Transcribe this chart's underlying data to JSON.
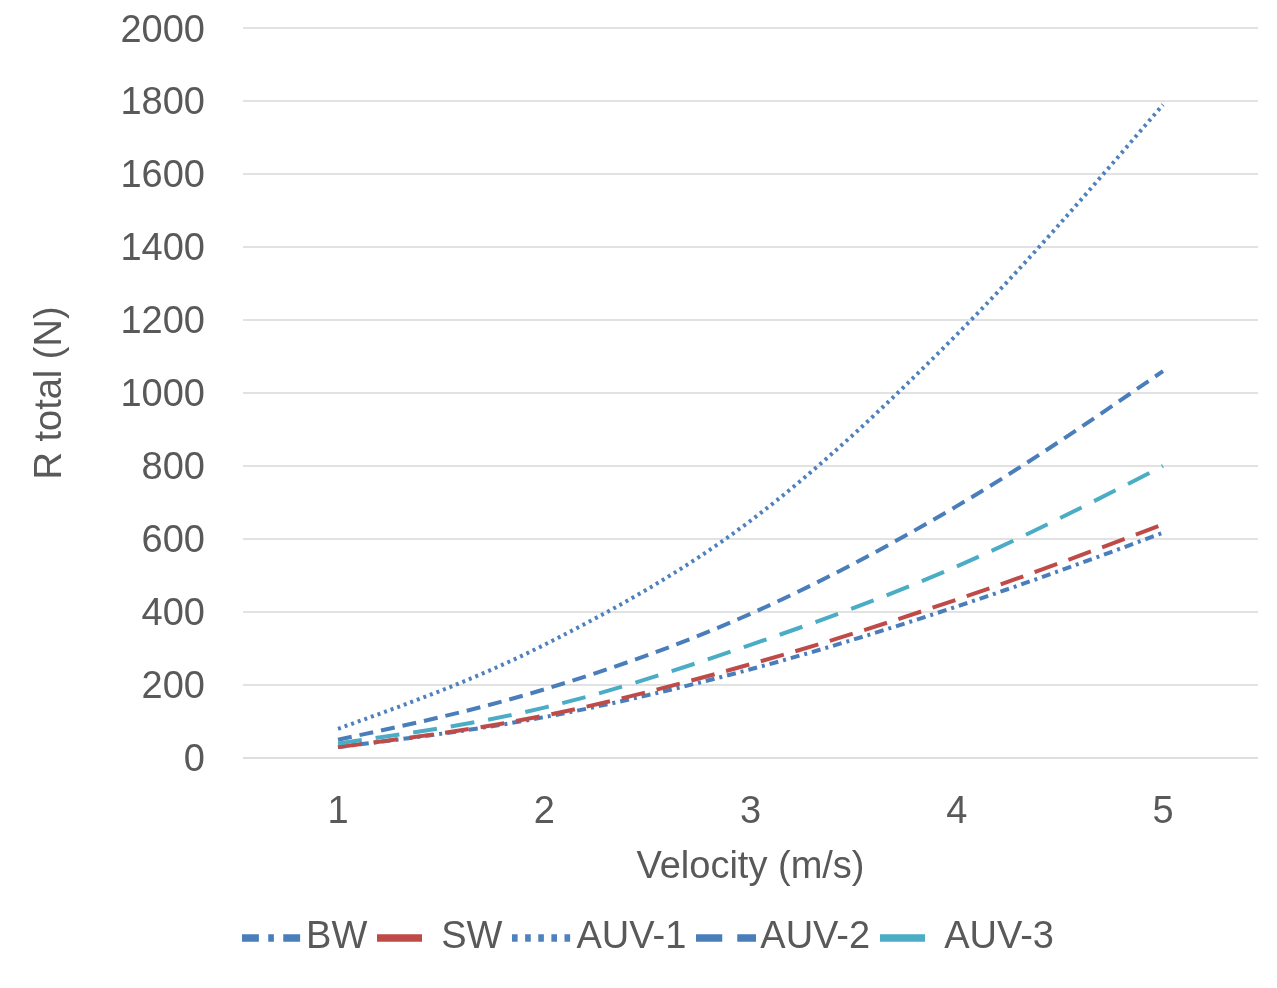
{
  "chart_data": {
    "type": "line",
    "xlabel": "Velocity (m/s)",
    "ylabel": "R total (N)",
    "categories": [
      "1",
      "2",
      "3",
      "4",
      "5"
    ],
    "series": [
      {
        "name": "BW",
        "color": "#4a7ebb",
        "line_style": "dashed",
        "values": [
          30,
          112,
          243,
          415,
          617
        ]
      },
      {
        "name": "SW",
        "color": "#be4b48",
        "line_style": "dashed",
        "values": [
          30,
          116,
          257,
          434,
          640
        ]
      },
      {
        "name": "AUV-1",
        "color": "#4f81bd",
        "line_style": "dotted",
        "values": [
          80,
          310,
          650,
          1160,
          1790
        ]
      },
      {
        "name": "AUV-2",
        "color": "#4a7ebb",
        "line_style": "dashed",
        "values": [
          50,
          188,
          395,
          690,
          1060
        ]
      },
      {
        "name": "AUV-3",
        "color": "#4bacc6",
        "line_style": "dashed",
        "values": [
          40,
          138,
          310,
          525,
          800
        ]
      }
    ],
    "ylim": [
      0,
      2000
    ],
    "yticks": [
      0,
      200,
      400,
      600,
      800,
      1000,
      1200,
      1400,
      1600,
      1800,
      2000
    ],
    "grid": "y",
    "legend": "bottom",
    "marker": "none"
  }
}
